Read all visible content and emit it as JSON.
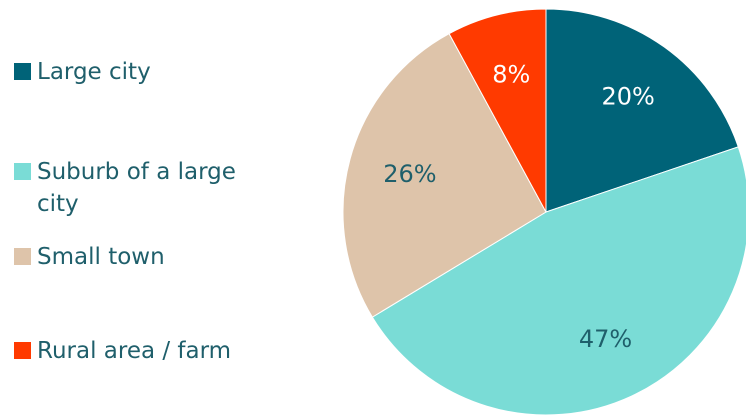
{
  "chart_data": {
    "type": "pie",
    "title": "",
    "categories": [
      "Large city",
      "Suburb of a large city",
      "Small town",
      "Rural area / farm"
    ],
    "values": [
      20,
      47,
      26,
      8
    ],
    "labels": [
      "20%",
      "47%",
      "26%",
      "8%"
    ],
    "colors": [
      "#006378",
      "#7ADCD6",
      "#DEC4AA",
      "#FF3A00"
    ],
    "label_colors": [
      "#ffffff",
      "#1f5f6b",
      "#1f5f6b",
      "#ffffff"
    ],
    "legend_position": "left",
    "start_angle": "12 o'clock",
    "direction": "clockwise"
  },
  "legend": {
    "items": [
      {
        "label": "Large city",
        "color": "#006378"
      },
      {
        "label": "Suburb of a large city",
        "color": "#7ADCD6"
      },
      {
        "label": "Small town",
        "color": "#DEC4AA"
      },
      {
        "label": "Rural area / farm",
        "color": "#FF3A00"
      }
    ]
  }
}
